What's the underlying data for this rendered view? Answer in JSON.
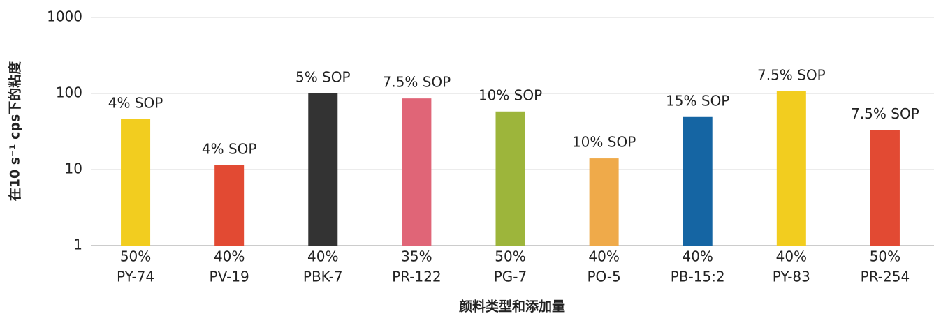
{
  "chart_data": {
    "type": "bar",
    "y_label": "在10 s⁻¹ cps下的粘度",
    "x_label": "颜料类型和添加量",
    "categories": [
      [
        "50%",
        "PY-74"
      ],
      [
        "40%",
        "PV-19"
      ],
      [
        "40%",
        "PBK-7"
      ],
      [
        "35%",
        "PR-122"
      ],
      [
        "50%",
        "PG-7"
      ],
      [
        "40%",
        "PO-5"
      ],
      [
        "40%",
        "PB-15:2"
      ],
      [
        "40%",
        "PY-83"
      ],
      [
        "50%",
        "PR-254"
      ]
    ],
    "values": [
      46,
      11.4,
      100,
      86,
      58,
      14,
      49,
      107,
      33
    ],
    "annotations": [
      "4% SOP",
      "4% SOP",
      "5% SOP",
      "7.5% SOP",
      "10% SOP",
      "10% SOP",
      "15% SOP",
      "7.5% SOP",
      "7.5% SOP"
    ],
    "colors": [
      "#f2cd1f",
      "#e24a33",
      "#333333",
      "#e06577",
      "#9db53b",
      "#efaa4a",
      "#1565a3",
      "#f2cd1f",
      "#e24a33"
    ],
    "ylim": [
      1,
      1000
    ],
    "yticks": [
      1,
      10,
      100,
      1000
    ],
    "log_scale": true,
    "grid": true
  }
}
